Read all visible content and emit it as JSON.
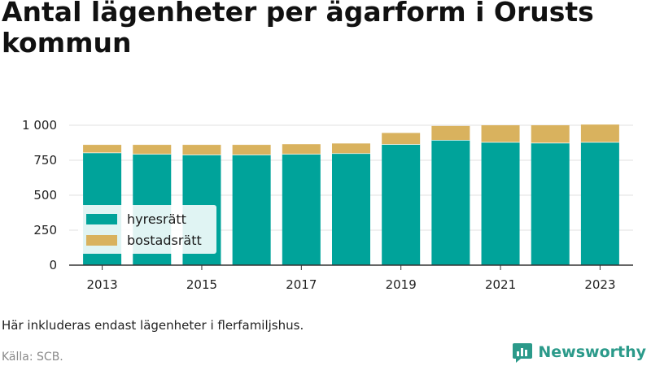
{
  "title": "Antal lägenheter per ägarform i Orusts kommun",
  "note": "Här inkluderas endast lägenheter i flerfamiljshus.",
  "source": "Källa: SCB.",
  "brand": {
    "name": "Newsworthy",
    "icon": "newsworthy-logo-icon",
    "color": "#2b9a8a"
  },
  "colors": {
    "hyresratt": "#00a39a",
    "bostadsratt": "#d9b25e",
    "grid": "#e0e0e0",
    "axis": "#333333"
  },
  "chart_data": {
    "type": "bar",
    "stacked": true,
    "categories": [
      "2013",
      "2014",
      "2015",
      "2016",
      "2017",
      "2018",
      "2019",
      "2020",
      "2021",
      "2022",
      "2023"
    ],
    "series": [
      {
        "name": "hyresrätt",
        "values": [
          805,
          795,
          790,
          790,
          795,
          800,
          865,
          895,
          880,
          875,
          880
        ]
      },
      {
        "name": "bostadsrätt",
        "values": [
          55,
          65,
          70,
          70,
          70,
          70,
          80,
          100,
          120,
          125,
          125
        ]
      }
    ],
    "xtick_labels": [
      "2013",
      "2015",
      "2017",
      "2019",
      "2021",
      "2023"
    ],
    "ytick_labels": [
      "0",
      "250",
      "500",
      "750",
      "1 000"
    ],
    "yticks": [
      0,
      250,
      500,
      750,
      1000
    ],
    "ylim": [
      0,
      1100
    ],
    "grid": true,
    "legend_position": "bottom-left"
  }
}
